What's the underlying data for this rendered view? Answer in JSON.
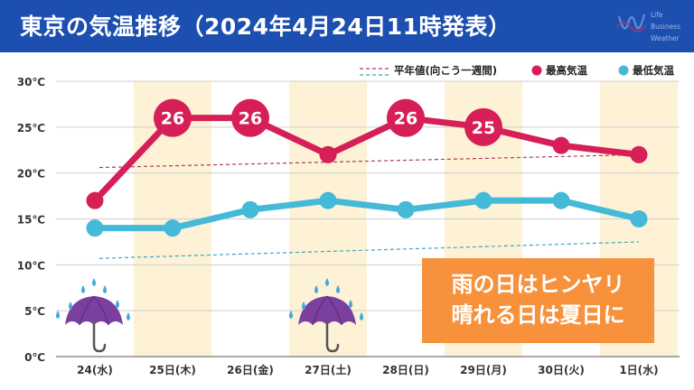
{
  "header": {
    "title": "東京の気温推移（2024年4月24日11時発表）"
  },
  "logo": {
    "lines": [
      "Life",
      "Business",
      "Weather"
    ],
    "icon": "wave-w-icon"
  },
  "note": {
    "line1": "雨の日はヒンヤリ",
    "line2": "晴れる日は夏日に"
  },
  "colors": {
    "header": "#1d4fb0",
    "high": "#d61f57",
    "low": "#44b9d8",
    "rain_band": "#fdf1d6",
    "note": "#f7913c"
  },
  "chart_data": {
    "type": "line",
    "categories": [
      "24(水)",
      "25日(木)",
      "26日(金)",
      "27日(土)",
      "28日(日)",
      "29日(月)",
      "30日(火)",
      "1日(水)"
    ],
    "ylim": [
      0,
      30
    ],
    "yticks": [
      0,
      5,
      10,
      15,
      20,
      25,
      30
    ],
    "ytick_labels": [
      "0℃",
      "5℃",
      "10℃",
      "15℃",
      "20℃",
      "25℃",
      "30℃"
    ],
    "series": [
      {
        "name": "最高気温",
        "values": [
          17,
          26,
          26,
          22,
          26,
          25,
          23,
          22
        ],
        "labeled": [
          false,
          true,
          true,
          false,
          true,
          true,
          false,
          false
        ]
      },
      {
        "name": "最低気温",
        "values": [
          14,
          14,
          16,
          17,
          16,
          17,
          17,
          15
        ]
      }
    ],
    "normal": {
      "name": "平年値(向こう一週間)",
      "high": [
        20.6,
        22.0
      ],
      "low": [
        10.7,
        12.5
      ]
    },
    "shaded_days": [
      1,
      3,
      5,
      7
    ],
    "rain_days": [
      0,
      3
    ],
    "rain_icon": "umbrella-rain-icon",
    "grid": true,
    "legend_position": "top-right"
  }
}
